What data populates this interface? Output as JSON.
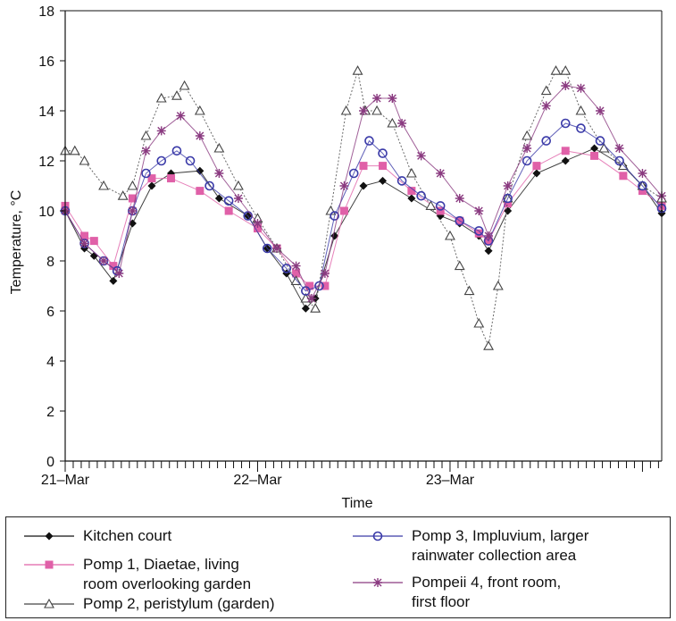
{
  "chart_data": {
    "type": "line",
    "title": "",
    "xlabel": "Time",
    "ylabel": "Temperature, °C",
    "ylim": [
      0,
      18
    ],
    "yticks": [
      "0",
      "2",
      "4",
      "6",
      "8",
      "10",
      "12",
      "14",
      "16",
      "18"
    ],
    "xlim": [
      0,
      3.1
    ],
    "xticklabels": [
      {
        "x": 0,
        "label": "21–Mar"
      },
      {
        "x": 1,
        "label": "22–Mar"
      },
      {
        "x": 2,
        "label": "23–Mar"
      }
    ],
    "minor_ticks_per_day": 24,
    "grid": false,
    "legend_position": "bottom",
    "series": [
      {
        "name": "Kitchen court",
        "color": "#111111",
        "marker": "diamond",
        "points": [
          [
            0,
            10
          ],
          [
            0.1,
            8.5
          ],
          [
            0.15,
            8.2
          ],
          [
            0.25,
            7.2
          ],
          [
            0.35,
            9.5
          ],
          [
            0.45,
            11
          ],
          [
            0.55,
            11.5
          ],
          [
            0.7,
            11.6
          ],
          [
            0.8,
            10.5
          ],
          [
            0.95,
            9.8
          ],
          [
            1.05,
            8.5
          ],
          [
            1.15,
            7.5
          ],
          [
            1.25,
            6.1
          ],
          [
            1.3,
            6.5
          ],
          [
            1.4,
            9
          ],
          [
            1.55,
            11
          ],
          [
            1.65,
            11.2
          ],
          [
            1.8,
            10.5
          ],
          [
            1.95,
            9.8
          ],
          [
            2.05,
            9.5
          ],
          [
            2.15,
            9
          ],
          [
            2.2,
            8.4
          ],
          [
            2.3,
            10
          ],
          [
            2.45,
            11.5
          ],
          [
            2.6,
            12
          ],
          [
            2.75,
            12.5
          ],
          [
            2.9,
            11.8
          ],
          [
            3.0,
            11
          ],
          [
            3.1,
            9.9
          ]
        ]
      },
      {
        "name": "Pomp 1, Diaetae, living\nroom overlooking garden",
        "color": "#e060a8",
        "marker": "square",
        "points": [
          [
            0,
            10.2
          ],
          [
            0.1,
            9
          ],
          [
            0.15,
            8.8
          ],
          [
            0.25,
            7.8
          ],
          [
            0.35,
            10.5
          ],
          [
            0.45,
            11.3
          ],
          [
            0.55,
            11.3
          ],
          [
            0.7,
            10.8
          ],
          [
            0.85,
            10
          ],
          [
            1.0,
            9.3
          ],
          [
            1.1,
            8.5
          ],
          [
            1.2,
            7.5
          ],
          [
            1.27,
            7
          ],
          [
            1.35,
            7
          ],
          [
            1.45,
            10
          ],
          [
            1.55,
            11.8
          ],
          [
            1.65,
            11.8
          ],
          [
            1.8,
            10.8
          ],
          [
            1.95,
            10
          ],
          [
            2.05,
            9.6
          ],
          [
            2.15,
            9.1
          ],
          [
            2.2,
            8.8
          ],
          [
            2.3,
            10.3
          ],
          [
            2.45,
            11.8
          ],
          [
            2.6,
            12.4
          ],
          [
            2.75,
            12.2
          ],
          [
            2.9,
            11.4
          ],
          [
            3.0,
            10.8
          ],
          [
            3.1,
            10.2
          ]
        ]
      },
      {
        "name": "Pomp 2, peristylum (garden)",
        "color": "#444444",
        "marker": "triangle",
        "points": [
          [
            0,
            12.4
          ],
          [
            0.05,
            12.4
          ],
          [
            0.1,
            12
          ],
          [
            0.2,
            11
          ],
          [
            0.3,
            10.6
          ],
          [
            0.35,
            11
          ],
          [
            0.42,
            13
          ],
          [
            0.5,
            14.5
          ],
          [
            0.58,
            14.6
          ],
          [
            0.62,
            15
          ],
          [
            0.7,
            14
          ],
          [
            0.8,
            12.5
          ],
          [
            0.9,
            11
          ],
          [
            1.0,
            9.7
          ],
          [
            1.1,
            8.5
          ],
          [
            1.2,
            7.2
          ],
          [
            1.25,
            6.5
          ],
          [
            1.3,
            6.1
          ],
          [
            1.38,
            10
          ],
          [
            1.46,
            14
          ],
          [
            1.52,
            15.6
          ],
          [
            1.56,
            14
          ],
          [
            1.62,
            14
          ],
          [
            1.7,
            13.5
          ],
          [
            1.8,
            11.5
          ],
          [
            1.9,
            10.2
          ],
          [
            2.0,
            9
          ],
          [
            2.05,
            7.8
          ],
          [
            2.1,
            6.8
          ],
          [
            2.15,
            5.5
          ],
          [
            2.2,
            4.6
          ],
          [
            2.25,
            7
          ],
          [
            2.3,
            10.5
          ],
          [
            2.4,
            13
          ],
          [
            2.5,
            14.8
          ],
          [
            2.55,
            15.6
          ],
          [
            2.6,
            15.6
          ],
          [
            2.68,
            14
          ],
          [
            2.8,
            12.5
          ],
          [
            2.9,
            11.8
          ],
          [
            3.0,
            11
          ],
          [
            3.1,
            10.5
          ]
        ]
      },
      {
        "name": "Pomp 3, Impluvium, larger\nrainwater collection area",
        "color": "#3a3aa8",
        "marker": "circle",
        "points": [
          [
            0,
            10
          ],
          [
            0.1,
            8.7
          ],
          [
            0.2,
            8
          ],
          [
            0.27,
            7.6
          ],
          [
            0.35,
            10
          ],
          [
            0.42,
            11.5
          ],
          [
            0.5,
            12
          ],
          [
            0.58,
            12.4
          ],
          [
            0.65,
            12
          ],
          [
            0.75,
            11
          ],
          [
            0.85,
            10.4
          ],
          [
            0.95,
            9.8
          ],
          [
            1.05,
            8.5
          ],
          [
            1.15,
            7.7
          ],
          [
            1.25,
            6.8
          ],
          [
            1.32,
            7
          ],
          [
            1.4,
            9.8
          ],
          [
            1.5,
            11.5
          ],
          [
            1.58,
            12.8
          ],
          [
            1.65,
            12.3
          ],
          [
            1.75,
            11.2
          ],
          [
            1.85,
            10.6
          ],
          [
            1.95,
            10.2
          ],
          [
            2.05,
            9.6
          ],
          [
            2.15,
            9.2
          ],
          [
            2.2,
            8.8
          ],
          [
            2.3,
            10.5
          ],
          [
            2.4,
            12
          ],
          [
            2.5,
            12.8
          ],
          [
            2.6,
            13.5
          ],
          [
            2.68,
            13.3
          ],
          [
            2.78,
            12.8
          ],
          [
            2.88,
            12
          ],
          [
            3.0,
            11
          ],
          [
            3.1,
            10.1
          ]
        ]
      },
      {
        "name": "Pompeii 4, front room,\nfirst floor",
        "color": "#8a3a80",
        "marker": "star",
        "points": [
          [
            0,
            10
          ],
          [
            0.1,
            8.7
          ],
          [
            0.2,
            8
          ],
          [
            0.28,
            7.5
          ],
          [
            0.35,
            10
          ],
          [
            0.42,
            12.4
          ],
          [
            0.5,
            13.2
          ],
          [
            0.6,
            13.8
          ],
          [
            0.7,
            13
          ],
          [
            0.8,
            11.5
          ],
          [
            0.9,
            10.5
          ],
          [
            1.0,
            9.5
          ],
          [
            1.1,
            8.5
          ],
          [
            1.2,
            7.8
          ],
          [
            1.28,
            6.5
          ],
          [
            1.35,
            7.5
          ],
          [
            1.45,
            11
          ],
          [
            1.55,
            14
          ],
          [
            1.62,
            14.5
          ],
          [
            1.7,
            14.5
          ],
          [
            1.75,
            13.5
          ],
          [
            1.85,
            12.2
          ],
          [
            1.95,
            11.5
          ],
          [
            2.05,
            10.5
          ],
          [
            2.15,
            10
          ],
          [
            2.2,
            9
          ],
          [
            2.3,
            11
          ],
          [
            2.4,
            12.5
          ],
          [
            2.5,
            14.2
          ],
          [
            2.6,
            15
          ],
          [
            2.68,
            14.9
          ],
          [
            2.78,
            14
          ],
          [
            2.88,
            12.5
          ],
          [
            3.0,
            11.5
          ],
          [
            3.1,
            10.6
          ]
        ]
      }
    ]
  }
}
